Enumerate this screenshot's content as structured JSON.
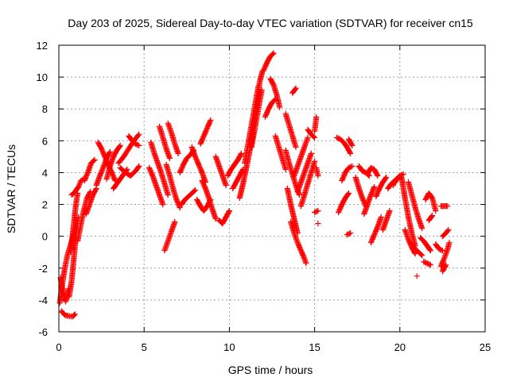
{
  "chart_data": {
    "type": "scatter",
    "title": "Day 203 of 2025, Sidereal Day-to-day VTEC variation (SDTVAR) for receiver cn15",
    "xlabel": "GPS time / hours",
    "ylabel": "SDTVAR / TECUs",
    "xlim": [
      0,
      25
    ],
    "ylim": [
      -6,
      12
    ],
    "xticks": [
      0,
      5,
      10,
      15,
      20,
      25
    ],
    "yticks": [
      -6,
      -4,
      -2,
      0,
      2,
      4,
      6,
      8,
      10,
      12
    ],
    "grid": true,
    "marker": "+",
    "color": "#ff0000",
    "segments": [
      [
        [
          0.05,
          -4.2
        ],
        [
          0.2,
          -3.0
        ],
        [
          0.35,
          -2.0
        ],
        [
          0.5,
          -1.2
        ],
        [
          0.7,
          -0.5
        ],
        [
          0.9,
          0.3
        ]
      ],
      [
        [
          0.1,
          -2.6
        ],
        [
          0.25,
          -3.6
        ],
        [
          0.4,
          -4.1
        ],
        [
          0.55,
          -3.3
        ]
      ],
      [
        [
          0.15,
          -4.7
        ],
        [
          0.35,
          -4.95
        ],
        [
          0.55,
          -5.0
        ],
        [
          0.8,
          -5.05
        ],
        [
          0.95,
          -4.9
        ]
      ],
      [
        [
          0.6,
          -3.8
        ],
        [
          0.75,
          -2.8
        ],
        [
          0.85,
          -1.7
        ],
        [
          0.95,
          -0.6
        ],
        [
          1.05,
          0.4
        ],
        [
          1.15,
          1.2
        ]
      ],
      [
        [
          0.7,
          -1.0
        ],
        [
          0.8,
          0.0
        ],
        [
          0.9,
          1.0
        ],
        [
          1.0,
          2.0
        ],
        [
          1.1,
          2.7
        ]
      ],
      [
        [
          0.75,
          2.6
        ],
        [
          0.95,
          2.8
        ],
        [
          1.15,
          3.1
        ],
        [
          1.3,
          3.5
        ],
        [
          1.45,
          3.6
        ]
      ],
      [
        [
          1.1,
          -0.3
        ],
        [
          1.3,
          0.8
        ],
        [
          1.45,
          1.6
        ],
        [
          1.65,
          2.4
        ],
        [
          1.85,
          2.8
        ]
      ],
      [
        [
          1.5,
          3.5
        ],
        [
          1.7,
          4.0
        ],
        [
          1.9,
          4.6
        ],
        [
          2.1,
          4.8
        ]
      ],
      [
        [
          1.6,
          1.4
        ],
        [
          1.8,
          2.0
        ],
        [
          2.0,
          2.6
        ],
        [
          2.2,
          3.0
        ]
      ],
      [
        [
          2.2,
          3.2
        ],
        [
          2.4,
          3.8
        ],
        [
          2.6,
          4.3
        ],
        [
          2.8,
          4.9
        ],
        [
          3.0,
          5.3
        ]
      ],
      [
        [
          2.3,
          5.9
        ],
        [
          2.5,
          5.5
        ],
        [
          2.7,
          5.0
        ],
        [
          2.9,
          4.5
        ],
        [
          3.1,
          4.0
        ],
        [
          3.3,
          3.5
        ]
      ],
      [
        [
          2.8,
          3.6
        ],
        [
          3.0,
          4.4
        ],
        [
          3.2,
          5.0
        ],
        [
          3.4,
          5.4
        ],
        [
          3.6,
          5.7
        ]
      ],
      [
        [
          3.2,
          3.0
        ],
        [
          3.4,
          3.3
        ],
        [
          3.6,
          3.6
        ],
        [
          3.8,
          3.9
        ],
        [
          4.0,
          4.2
        ]
      ],
      [
        [
          3.5,
          4.6
        ],
        [
          3.8,
          5.0
        ],
        [
          4.1,
          5.5
        ],
        [
          4.4,
          6.0
        ],
        [
          4.7,
          6.4
        ]
      ],
      [
        [
          3.6,
          4.3
        ],
        [
          3.9,
          4.0
        ],
        [
          4.2,
          3.8
        ],
        [
          4.5,
          4.1
        ],
        [
          4.7,
          4.4
        ]
      ],
      [
        [
          4.1,
          6.3
        ],
        [
          4.3,
          6.0
        ],
        [
          4.5,
          5.8
        ],
        [
          4.7,
          5.7
        ]
      ],
      [
        [
          5.3,
          4.3
        ],
        [
          5.5,
          3.8
        ],
        [
          5.7,
          3.2
        ],
        [
          5.9,
          2.6
        ],
        [
          6.1,
          2.0
        ]
      ],
      [
        [
          5.4,
          5.9
        ],
        [
          5.6,
          5.2
        ],
        [
          5.8,
          4.6
        ],
        [
          6.0,
          4.0
        ],
        [
          6.2,
          3.3
        ],
        [
          6.4,
          2.6
        ]
      ],
      [
        [
          5.9,
          6.9
        ],
        [
          6.1,
          6.2
        ],
        [
          6.3,
          5.5
        ],
        [
          6.5,
          4.9
        ]
      ],
      [
        [
          6.4,
          7.1
        ],
        [
          6.6,
          6.5
        ],
        [
          6.8,
          5.8
        ],
        [
          7.0,
          5.2
        ]
      ],
      [
        [
          6.2,
          -0.9
        ],
        [
          6.4,
          -0.3
        ],
        [
          6.6,
          0.3
        ],
        [
          6.8,
          0.9
        ]
      ],
      [
        [
          6.3,
          4.5
        ],
        [
          6.5,
          3.8
        ],
        [
          6.7,
          3.0
        ],
        [
          6.9,
          2.3
        ],
        [
          7.1,
          1.8
        ]
      ],
      [
        [
          7.1,
          4.0
        ],
        [
          7.3,
          4.5
        ],
        [
          7.5,
          4.9
        ],
        [
          7.7,
          5.1
        ],
        [
          7.9,
          5.4
        ]
      ],
      [
        [
          7.2,
          2.0
        ],
        [
          7.4,
          2.3
        ],
        [
          7.6,
          2.5
        ],
        [
          7.8,
          2.7
        ],
        [
          8.0,
          2.9
        ]
      ],
      [
        [
          7.8,
          5.6
        ],
        [
          8.0,
          5.0
        ],
        [
          8.2,
          4.5
        ],
        [
          8.4,
          4.0
        ],
        [
          8.6,
          3.4
        ]
      ],
      [
        [
          8.1,
          2.3
        ],
        [
          8.3,
          1.9
        ],
        [
          8.5,
          1.6
        ],
        [
          8.7,
          1.9
        ],
        [
          8.9,
          2.3
        ]
      ],
      [
        [
          8.3,
          5.8
        ],
        [
          8.5,
          6.3
        ],
        [
          8.7,
          6.8
        ],
        [
          8.9,
          7.3
        ]
      ],
      [
        [
          8.4,
          3.5
        ],
        [
          8.6,
          3.0
        ],
        [
          8.8,
          2.4
        ],
        [
          9.0,
          1.7
        ],
        [
          9.2,
          1.1
        ]
      ],
      [
        [
          9.2,
          5.0
        ],
        [
          9.4,
          4.4
        ],
        [
          9.6,
          3.8
        ],
        [
          9.8,
          3.2
        ]
      ],
      [
        [
          9.4,
          1.0
        ],
        [
          9.6,
          0.8
        ],
        [
          9.8,
          1.2
        ],
        [
          10.0,
          1.6
        ]
      ],
      [
        [
          9.9,
          3.8
        ],
        [
          10.1,
          4.2
        ],
        [
          10.3,
          4.5
        ],
        [
          10.5,
          4.8
        ],
        [
          10.7,
          5.2
        ]
      ],
      [
        [
          10.2,
          3.0
        ],
        [
          10.4,
          3.4
        ],
        [
          10.6,
          3.8
        ],
        [
          10.8,
          4.2
        ]
      ],
      [
        [
          10.6,
          2.4
        ],
        [
          10.8,
          3.3
        ],
        [
          11.0,
          4.3
        ],
        [
          11.2,
          5.4
        ],
        [
          11.4,
          6.5
        ]
      ],
      [
        [
          10.9,
          4.6
        ],
        [
          11.1,
          5.8
        ],
        [
          11.3,
          7.0
        ],
        [
          11.5,
          8.2
        ],
        [
          11.7,
          9.4
        ]
      ],
      [
        [
          11.2,
          6.2
        ],
        [
          11.4,
          7.4
        ],
        [
          11.6,
          8.6
        ],
        [
          11.8,
          9.8
        ],
        [
          11.95,
          10.4
        ]
      ],
      [
        [
          11.3,
          5.6
        ],
        [
          11.5,
          6.8
        ],
        [
          11.7,
          8.0
        ],
        [
          11.9,
          9.2
        ]
      ],
      [
        [
          12.0,
          10.4
        ],
        [
          12.2,
          10.9
        ],
        [
          12.4,
          11.3
        ],
        [
          12.6,
          11.5
        ]
      ],
      [
        [
          12.1,
          7.5
        ],
        [
          12.3,
          8.0
        ],
        [
          12.5,
          8.4
        ],
        [
          12.7,
          8.6
        ]
      ],
      [
        [
          12.4,
          9.9
        ],
        [
          12.6,
          9.5
        ],
        [
          12.8,
          8.8
        ],
        [
          12.95,
          8.1
        ]
      ],
      [
        [
          12.7,
          6.3
        ],
        [
          12.9,
          5.6
        ],
        [
          13.1,
          4.9
        ],
        [
          13.3,
          4.2
        ]
      ],
      [
        [
          13.3,
          7.7
        ],
        [
          13.5,
          7.0
        ],
        [
          13.7,
          6.3
        ],
        [
          13.9,
          5.6
        ]
      ],
      [
        [
          13.9,
          9.3
        ],
        [
          13.7,
          9.0
        ]
      ],
      [
        [
          13.3,
          5.4
        ],
        [
          13.5,
          4.6
        ],
        [
          13.7,
          3.9
        ],
        [
          13.9,
          3.2
        ],
        [
          14.1,
          2.6
        ]
      ],
      [
        [
          13.4,
          3.0
        ],
        [
          13.6,
          2.0
        ],
        [
          13.8,
          1.1
        ],
        [
          14.0,
          0.2
        ]
      ],
      [
        [
          13.6,
          0.9
        ],
        [
          13.8,
          0.2
        ],
        [
          14.0,
          -0.4
        ],
        [
          14.2,
          -0.9
        ],
        [
          14.4,
          -1.4
        ],
        [
          14.5,
          -1.7
        ]
      ],
      [
        [
          13.8,
          3.8
        ],
        [
          14.0,
          4.4
        ],
        [
          14.2,
          5.0
        ],
        [
          14.4,
          5.6
        ],
        [
          14.6,
          6.2
        ]
      ],
      [
        [
          14.0,
          2.8
        ],
        [
          14.2,
          3.4
        ],
        [
          14.4,
          4.0
        ],
        [
          14.6,
          4.6
        ],
        [
          14.8,
          5.2
        ]
      ],
      [
        [
          14.2,
          1.9
        ],
        [
          14.4,
          2.6
        ],
        [
          14.6,
          3.3
        ],
        [
          14.8,
          4.0
        ],
        [
          15.0,
          4.7
        ]
      ],
      [
        [
          14.6,
          6.7
        ],
        [
          14.8,
          6.4
        ],
        [
          15.0,
          6.2
        ]
      ],
      [
        [
          15.1,
          7.5
        ],
        [
          15.0,
          6.6
        ]
      ],
      [
        [
          15.1,
          4.3
        ],
        [
          15.2,
          3.8
        ]
      ],
      [
        [
          15.0,
          1.5
        ],
        [
          15.2,
          1.6
        ]
      ],
      [
        [
          15.2,
          0.8
        ]
      ],
      [
        [
          16.3,
          6.2
        ],
        [
          16.5,
          6.1
        ],
        [
          16.7,
          5.9
        ],
        [
          16.9,
          5.6
        ],
        [
          17.1,
          5.2
        ]
      ],
      [
        [
          16.4,
          1.5
        ],
        [
          16.6,
          2.0
        ],
        [
          16.8,
          2.4
        ],
        [
          17.0,
          2.7
        ]
      ],
      [
        [
          16.6,
          3.5
        ],
        [
          16.8,
          4.0
        ],
        [
          17.0,
          4.3
        ],
        [
          17.2,
          4.4
        ]
      ],
      [
        [
          17.0,
          6.1
        ],
        [
          17.2,
          5.7
        ]
      ],
      [
        [
          17.4,
          3.7
        ],
        [
          17.6,
          3.0
        ],
        [
          17.8,
          2.4
        ],
        [
          18.0,
          1.9
        ]
      ],
      [
        [
          17.6,
          4.4
        ],
        [
          17.8,
          4.1
        ],
        [
          18.0,
          4.0
        ],
        [
          18.2,
          3.8
        ]
      ],
      [
        [
          16.9,
          0.1
        ],
        [
          17.1,
          0.2
        ]
      ],
      [
        [
          17.9,
          1.4
        ],
        [
          18.1,
          2.0
        ],
        [
          18.3,
          2.6
        ],
        [
          18.5,
          3.1
        ]
      ],
      [
        [
          18.1,
          3.9
        ],
        [
          18.3,
          4.3
        ],
        [
          18.5,
          4.2
        ],
        [
          18.7,
          3.8
        ]
      ],
      [
        [
          18.3,
          -0.4
        ],
        [
          18.5,
          0.1
        ],
        [
          18.7,
          0.6
        ],
        [
          18.9,
          1.2
        ]
      ],
      [
        [
          18.6,
          2.5
        ],
        [
          18.8,
          3.0
        ],
        [
          19.0,
          3.4
        ],
        [
          19.2,
          3.7
        ]
      ],
      [
        [
          19.0,
          0.4
        ],
        [
          19.2,
          1.0
        ],
        [
          19.4,
          1.6
        ]
      ],
      [
        [
          19.3,
          3.0
        ],
        [
          19.5,
          3.3
        ],
        [
          19.7,
          3.5
        ],
        [
          19.9,
          3.6
        ]
      ],
      [
        [
          19.6,
          3.2
        ],
        [
          19.8,
          3.6
        ],
        [
          20.0,
          3.8
        ],
        [
          20.2,
          3.9
        ]
      ],
      [
        [
          20.1,
          3.7
        ],
        [
          20.3,
          2.4
        ],
        [
          20.5,
          1.2
        ],
        [
          20.7,
          0.2
        ],
        [
          20.9,
          -0.6
        ]
      ],
      [
        [
          20.3,
          0.4
        ],
        [
          20.5,
          -0.2
        ],
        [
          20.7,
          -0.7
        ],
        [
          20.9,
          -1.1
        ]
      ],
      [
        [
          20.5,
          3.4
        ],
        [
          20.7,
          2.6
        ],
        [
          20.9,
          1.8
        ],
        [
          21.1,
          1.1
        ],
        [
          21.3,
          0.5
        ]
      ],
      [
        [
          20.7,
          -0.5
        ],
        [
          20.9,
          -0.8
        ],
        [
          21.1,
          -1.0
        ],
        [
          21.3,
          -1.2
        ]
      ],
      [
        [
          21.0,
          -2.5
        ]
      ],
      [
        [
          21.2,
          -0.1
        ],
        [
          21.4,
          -0.3
        ],
        [
          21.6,
          -0.6
        ],
        [
          21.8,
          -0.9
        ]
      ],
      [
        [
          21.4,
          -1.6
        ],
        [
          21.6,
          -1.7
        ],
        [
          21.8,
          -1.8
        ]
      ],
      [
        [
          21.5,
          2.3
        ],
        [
          21.7,
          2.7
        ],
        [
          21.9,
          2.4
        ],
        [
          22.1,
          1.6
        ]
      ],
      [
        [
          21.7,
          1.0
        ],
        [
          21.9,
          1.3
        ]
      ],
      [
        [
          22.1,
          -0.5
        ],
        [
          22.3,
          -0.8
        ],
        [
          22.5,
          -0.9
        ]
      ],
      [
        [
          22.4,
          -1.9
        ],
        [
          22.6,
          -1.4
        ],
        [
          22.8,
          -0.8
        ],
        [
          22.9,
          -0.4
        ]
      ],
      [
        [
          22.5,
          0.0
        ],
        [
          22.7,
          0.2
        ],
        [
          22.85,
          0.4
        ]
      ],
      [
        [
          22.4,
          1.9
        ],
        [
          22.6,
          1.9
        ],
        [
          22.8,
          1.9
        ]
      ],
      [
        [
          22.5,
          -2.2
        ],
        [
          22.7,
          -1.8
        ]
      ]
    ]
  }
}
